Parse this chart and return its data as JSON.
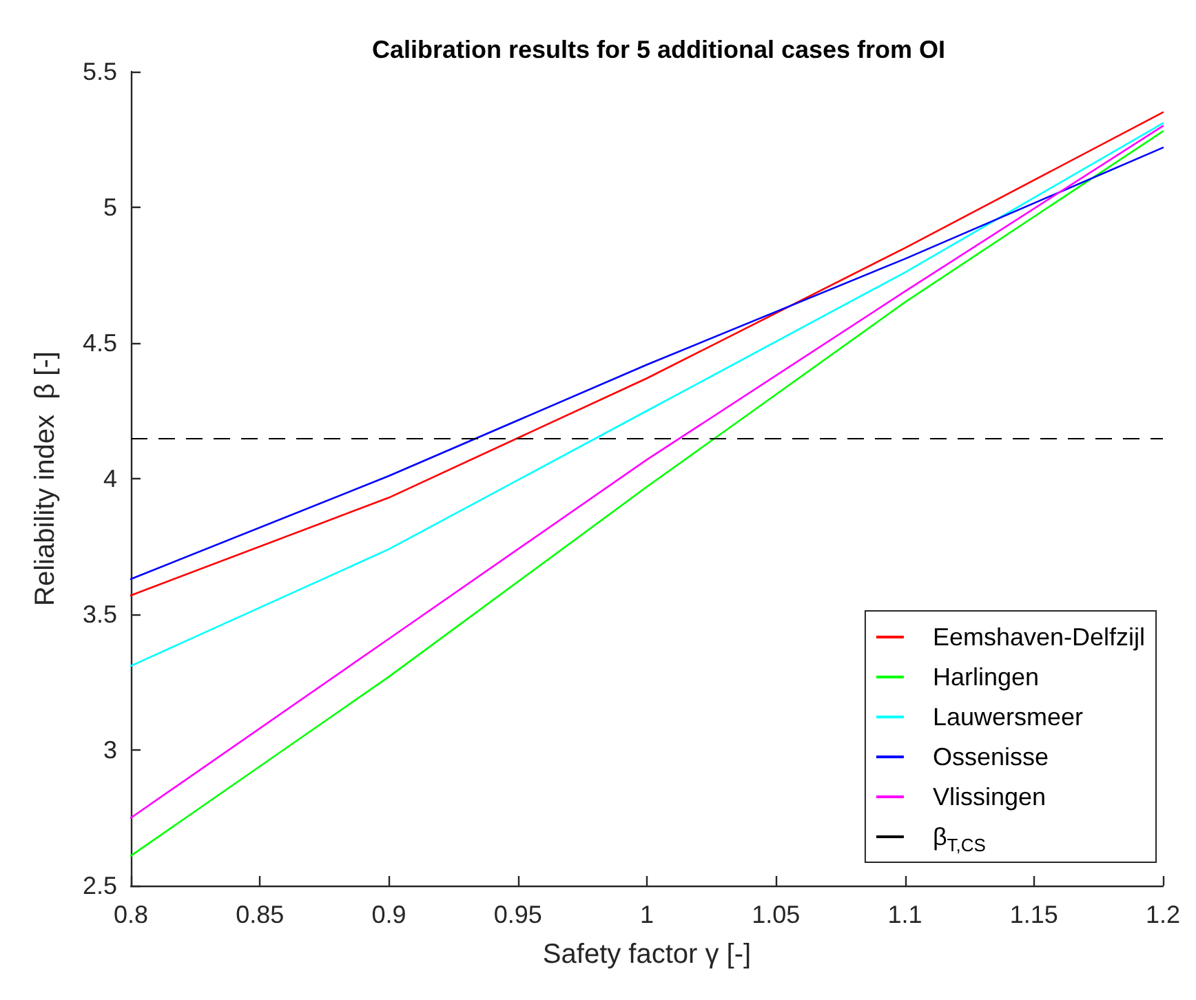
{
  "chart_data": {
    "type": "line",
    "title": "Calibration results for 5 additional cases from OI",
    "xlabel": "Safety factor γ [-]",
    "ylabel": "Reliability index  β [-]",
    "x": [
      0.8,
      0.9,
      1.0,
      1.1,
      1.2
    ],
    "series": [
      {
        "name": "Eemshaven-Delfzijl",
        "color": "#ff0000",
        "values": [
          3.57,
          3.93,
          4.37,
          4.85,
          5.35
        ]
      },
      {
        "name": "Harlingen",
        "color": "#00ff00",
        "values": [
          2.61,
          3.27,
          3.97,
          4.65,
          5.28
        ]
      },
      {
        "name": "Lauwersmeer",
        "color": "#00ffff",
        "values": [
          3.31,
          3.74,
          4.25,
          4.76,
          5.31
        ]
      },
      {
        "name": "Ossenisse",
        "color": "#0000ff",
        "values": [
          3.63,
          4.01,
          4.42,
          4.81,
          5.22
        ]
      },
      {
        "name": "Vlissingen",
        "color": "#ff00ff",
        "values": [
          2.75,
          3.41,
          4.07,
          4.69,
          5.3
        ]
      }
    ],
    "ref_lines": [
      {
        "axis": "y",
        "value": 4.15,
        "label": "β$_{T,CS}$",
        "color": "#000000",
        "line_style": "dashed"
      }
    ],
    "xlim": [
      0.8,
      1.2
    ],
    "xticks": [
      0.8,
      0.85,
      0.9,
      0.95,
      1,
      1.05,
      1.1,
      1.15,
      1.2
    ],
    "ylim": [
      2.5,
      5.5
    ],
    "yticks": [
      2.5,
      3,
      3.5,
      4,
      4.5,
      5,
      5.5
    ],
    "grid": false,
    "legend": "bottom right",
    "line_style": "solid",
    "marker": "none"
  }
}
